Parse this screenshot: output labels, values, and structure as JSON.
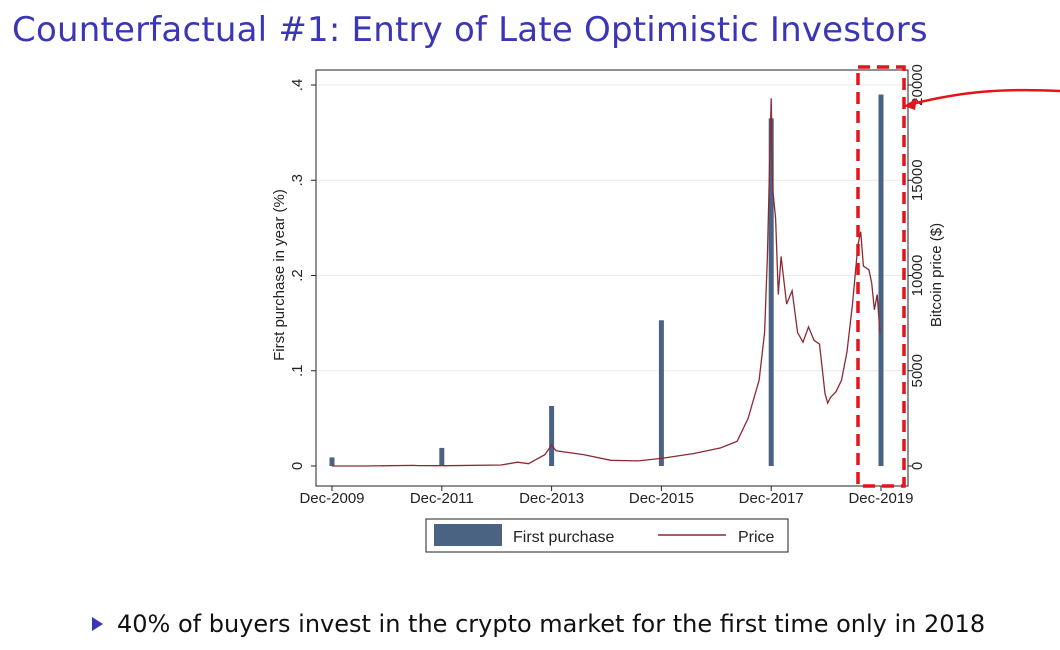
{
  "slide": {
    "title": "Counterfactual #1: Entry of Late Optimistic Investors",
    "bullet": "40% of buyers invest in the crypto market for the first time only in 2018"
  },
  "colors": {
    "bar": "#4a6382",
    "price": "#8b2a35",
    "highlight": "#e4141b",
    "title": "#3b36b5"
  },
  "chart_data": {
    "type": "bar+line",
    "xlabel": "",
    "ylabel_left": "First purchase in year (%)",
    "ylabel_right": "Bitcoin price ($)",
    "x_range": [
      2009.92,
      2019.92
    ],
    "ylim_left": [
      0,
      0.4
    ],
    "ylim_right": [
      0,
      20000
    ],
    "x_ticks": [
      {
        "x": 2009.92,
        "label": "Dec-2009"
      },
      {
        "x": 2011.92,
        "label": "Dec-2011"
      },
      {
        "x": 2013.92,
        "label": "Dec-2013"
      },
      {
        "x": 2015.92,
        "label": "Dec-2015"
      },
      {
        "x": 2017.92,
        "label": "Dec-2017"
      },
      {
        "x": 2019.92,
        "label": "Dec-2019"
      }
    ],
    "y_ticks_left": [
      {
        "v": 0,
        "label": "0"
      },
      {
        "v": 0.1,
        "label": ".1"
      },
      {
        "v": 0.2,
        "label": ".2"
      },
      {
        "v": 0.3,
        "label": ".3"
      },
      {
        "v": 0.4,
        "label": ".4"
      }
    ],
    "y_ticks_right": [
      {
        "v": 0,
        "label": "0"
      },
      {
        "v": 5000,
        "label": "5000"
      },
      {
        "v": 10000,
        "label": "10000"
      },
      {
        "v": 15000,
        "label": "15000"
      },
      {
        "v": 20000,
        "label": "20000"
      }
    ],
    "series": [
      {
        "name": "First purchase",
        "kind": "bar",
        "x": [
          2009.92,
          2011.92,
          2013.92,
          2015.92,
          2017.92,
          2019.92
        ],
        "values": [
          0.009,
          0.019,
          0.063,
          0.153,
          0.365,
          0.39
        ]
      },
      {
        "name": "Price",
        "kind": "line",
        "x": [
          2010.5,
          2011.4,
          2011.5,
          2012.0,
          2013.0,
          2013.3,
          2013.5,
          2013.8,
          2013.92,
          2014.0,
          2014.5,
          2015.0,
          2015.5,
          2015.92,
          2016.5,
          2017.0,
          2017.3,
          2017.5,
          2017.6,
          2017.7,
          2017.8,
          2017.85,
          2017.92,
          2017.95,
          2018.0,
          2018.05,
          2018.1,
          2018.2,
          2018.3,
          2018.4,
          2018.5,
          2018.6,
          2018.7,
          2018.8,
          2018.9,
          2018.95,
          2019.0,
          2019.1,
          2019.2,
          2019.3,
          2019.4,
          2019.5,
          2019.55,
          2019.6,
          2019.7,
          2019.75,
          2019.8,
          2019.85,
          2019.9
        ],
        "values": [
          0,
          30,
          20,
          15,
          50,
          200,
          120,
          600,
          1100,
          800,
          600,
          300,
          270,
          400,
          650,
          950,
          1300,
          2500,
          3500,
          4500,
          7000,
          11000,
          19300,
          14500,
          13000,
          9000,
          11000,
          8500,
          9200,
          7000,
          6500,
          7300,
          6600,
          6400,
          3800,
          3300,
          3600,
          3900,
          4500,
          6000,
          8500,
          11600,
          12300,
          10500,
          10300,
          9600,
          8200,
          9000,
          7000
        ]
      }
    ],
    "legend": {
      "position": "bottom-center",
      "entries": [
        "First purchase",
        "Price"
      ]
    }
  }
}
